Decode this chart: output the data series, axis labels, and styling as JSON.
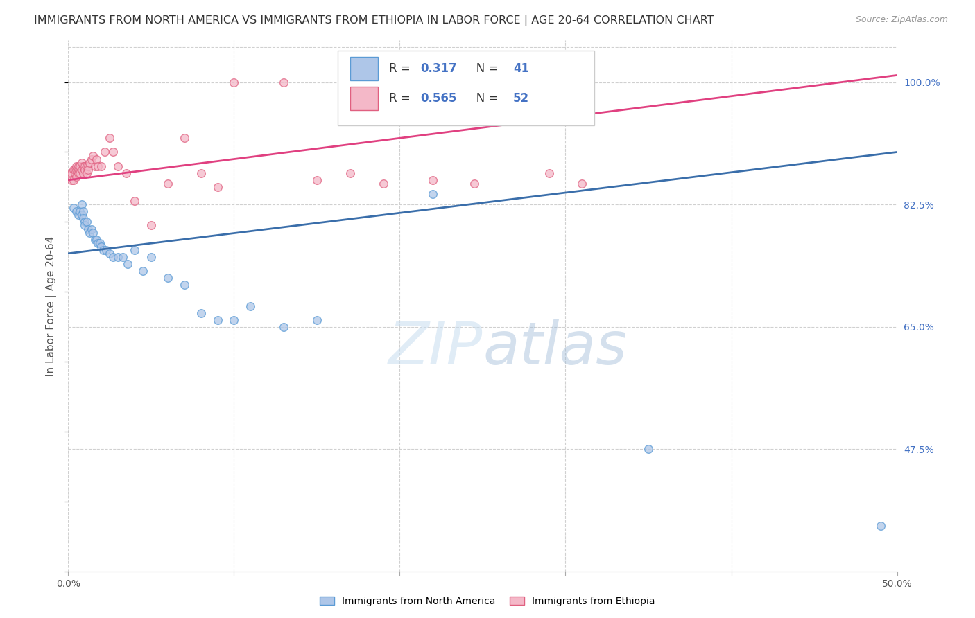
{
  "title": "IMMIGRANTS FROM NORTH AMERICA VS IMMIGRANTS FROM ETHIOPIA IN LABOR FORCE | AGE 20-64 CORRELATION CHART",
  "source": "Source: ZipAtlas.com",
  "ylabel": "In Labor Force | Age 20-64",
  "x_min": 0.0,
  "x_max": 0.5,
  "y_min": 0.3,
  "y_max": 1.06,
  "right_y_ticks": [
    0.475,
    0.65,
    0.825,
    1.0
  ],
  "right_y_tick_labels": [
    "47.5%",
    "65.0%",
    "82.5%",
    "100.0%"
  ],
  "watermark": "ZIPatlas",
  "legend_r_blue": "0.317",
  "legend_n_blue": "41",
  "legend_r_pink": "0.565",
  "legend_n_pink": "52",
  "blue_fill_color": "#aec6e8",
  "blue_edge_color": "#5b9bd5",
  "pink_fill_color": "#f4b8c8",
  "pink_edge_color": "#e06080",
  "blue_line_color": "#3a6eaa",
  "pink_line_color": "#e04080",
  "blue_scatter_x": [
    0.003,
    0.005,
    0.006,
    0.007,
    0.008,
    0.008,
    0.009,
    0.009,
    0.01,
    0.01,
    0.011,
    0.012,
    0.013,
    0.014,
    0.015,
    0.016,
    0.017,
    0.018,
    0.019,
    0.02,
    0.021,
    0.023,
    0.025,
    0.027,
    0.03,
    0.033,
    0.036,
    0.04,
    0.045,
    0.05,
    0.06,
    0.07,
    0.08,
    0.09,
    0.1,
    0.11,
    0.13,
    0.15,
    0.22,
    0.35,
    0.49
  ],
  "blue_scatter_y": [
    0.82,
    0.815,
    0.81,
    0.815,
    0.825,
    0.81,
    0.815,
    0.805,
    0.8,
    0.795,
    0.8,
    0.79,
    0.785,
    0.79,
    0.785,
    0.775,
    0.775,
    0.77,
    0.77,
    0.765,
    0.76,
    0.76,
    0.755,
    0.75,
    0.75,
    0.75,
    0.74,
    0.76,
    0.73,
    0.75,
    0.72,
    0.71,
    0.67,
    0.66,
    0.66,
    0.68,
    0.65,
    0.66,
    0.84,
    0.475,
    0.365
  ],
  "pink_scatter_x": [
    0.001,
    0.002,
    0.002,
    0.003,
    0.003,
    0.004,
    0.004,
    0.005,
    0.005,
    0.005,
    0.006,
    0.006,
    0.006,
    0.007,
    0.007,
    0.008,
    0.008,
    0.009,
    0.009,
    0.01,
    0.01,
    0.011,
    0.011,
    0.012,
    0.012,
    0.013,
    0.014,
    0.015,
    0.016,
    0.017,
    0.018,
    0.02,
    0.022,
    0.025,
    0.027,
    0.03,
    0.035,
    0.04,
    0.05,
    0.06,
    0.07,
    0.08,
    0.09,
    0.1,
    0.13,
    0.15,
    0.17,
    0.19,
    0.22,
    0.245,
    0.29,
    0.31
  ],
  "pink_scatter_y": [
    0.87,
    0.87,
    0.86,
    0.875,
    0.86,
    0.87,
    0.875,
    0.875,
    0.88,
    0.865,
    0.88,
    0.875,
    0.87,
    0.88,
    0.87,
    0.885,
    0.875,
    0.88,
    0.87,
    0.88,
    0.875,
    0.88,
    0.87,
    0.88,
    0.875,
    0.885,
    0.89,
    0.895,
    0.88,
    0.89,
    0.88,
    0.88,
    0.9,
    0.92,
    0.9,
    0.88,
    0.87,
    0.83,
    0.795,
    0.855,
    0.92,
    0.87,
    0.85,
    1.0,
    1.0,
    0.86,
    0.87,
    0.855,
    0.86,
    0.855,
    0.87,
    0.855
  ],
  "blue_trend": [
    0.0,
    0.5,
    0.755,
    0.9
  ],
  "pink_trend": [
    0.0,
    0.5,
    0.86,
    1.01
  ],
  "grid_color": "#d0d0d0",
  "background_color": "#ffffff",
  "title_fontsize": 11.5,
  "axis_label_fontsize": 11,
  "tick_fontsize": 10,
  "marker_size": 70,
  "marker_alpha": 0.75,
  "marker_edge_width": 1.0
}
